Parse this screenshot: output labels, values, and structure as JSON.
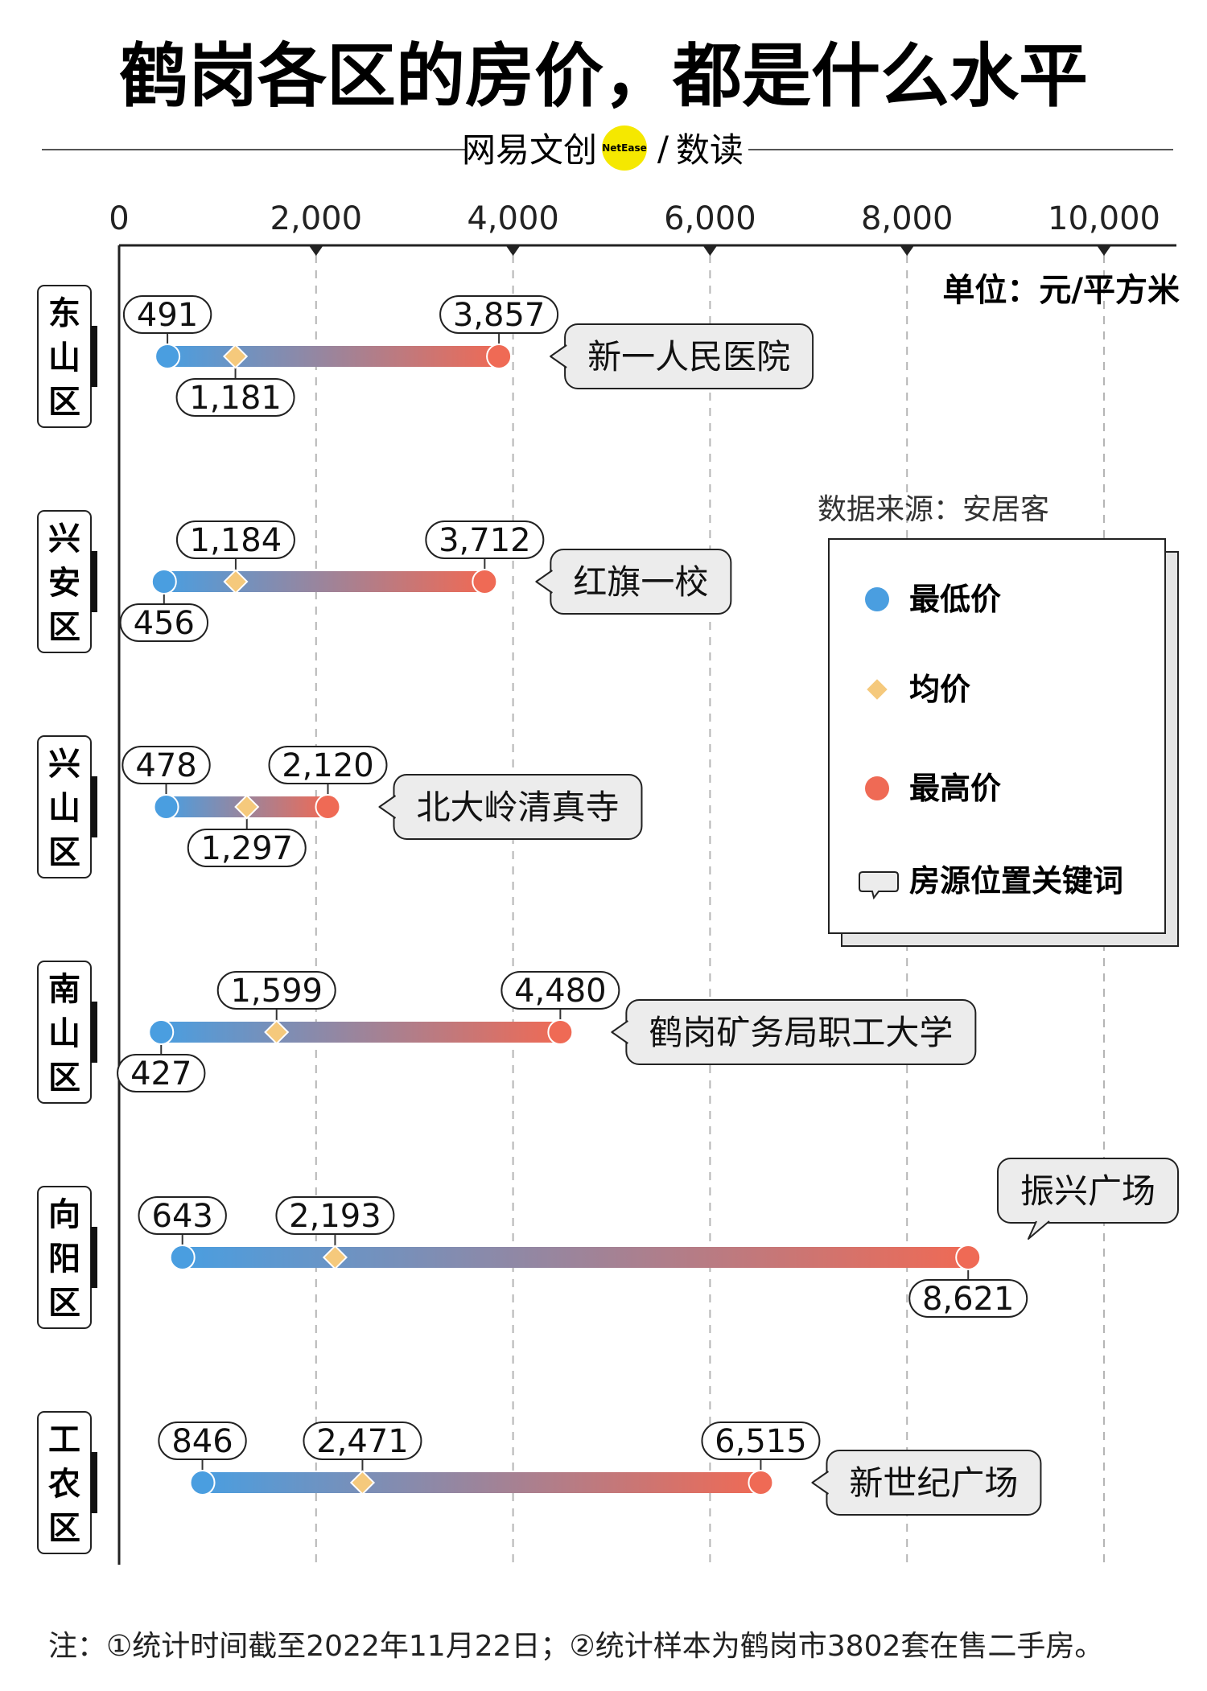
{
  "title": "鹤岗各区的房价，都是什么水平",
  "brand": {
    "left": "网易文创",
    "badge": "NetEase",
    "right": "数读",
    "separator": "/"
  },
  "unit_label": "单位：元/平方米",
  "source_label": "数据来源：安居客",
  "legend": {
    "min": "最低价",
    "avg": "均价",
    "max": "最高价",
    "keyword": "房源位置关键词"
  },
  "footnote": "注：①统计时间截至2022年11月22日；②统计样本为鹤岗市3802套在售二手房。",
  "colors": {
    "min": "#4a9ee0",
    "avg": "#f5c97c",
    "max": "#ef6a55",
    "dash": "#b5b5b5"
  },
  "chart_data": {
    "type": "range-bar",
    "title": "鹤岗各区的房价，都是什么水平",
    "xlim": [
      0,
      10000
    ],
    "ticks": [
      0,
      2000,
      4000,
      6000,
      8000,
      10000
    ],
    "tick_labels": [
      "0",
      "2,000",
      "4,000",
      "6,000",
      "8,000",
      "10,000"
    ],
    "grid": "vertical-dashed",
    "legend_position": "right",
    "districts": [
      {
        "name": "东山区",
        "min": 491,
        "avg": 1181,
        "max": 3857,
        "min_label": "491",
        "avg_label": "1,181",
        "max_label": "3,857",
        "keyword": "新一人民医院"
      },
      {
        "name": "兴安区",
        "min": 456,
        "avg": 1184,
        "max": 3712,
        "min_label": "456",
        "avg_label": "1,184",
        "max_label": "3,712",
        "keyword": "红旗一校"
      },
      {
        "name": "兴山区",
        "min": 478,
        "avg": 1297,
        "max": 2120,
        "min_label": "478",
        "avg_label": "1,297",
        "max_label": "2,120",
        "keyword": "北大岭清真寺"
      },
      {
        "name": "南山区",
        "min": 427,
        "avg": 1599,
        "max": 4480,
        "min_label": "427",
        "avg_label": "1,599",
        "max_label": "4,480",
        "keyword": "鹤岗矿务局职工大学"
      },
      {
        "name": "向阳区",
        "min": 643,
        "avg": 2193,
        "max": 8621,
        "min_label": "643",
        "avg_label": "2,193",
        "max_label": "8,621",
        "keyword": "振兴广场"
      },
      {
        "name": "工农区",
        "min": 846,
        "avg": 2471,
        "max": 6515,
        "min_label": "846",
        "avg_label": "2,471",
        "max_label": "6,515",
        "keyword": "新世纪广场"
      }
    ]
  }
}
